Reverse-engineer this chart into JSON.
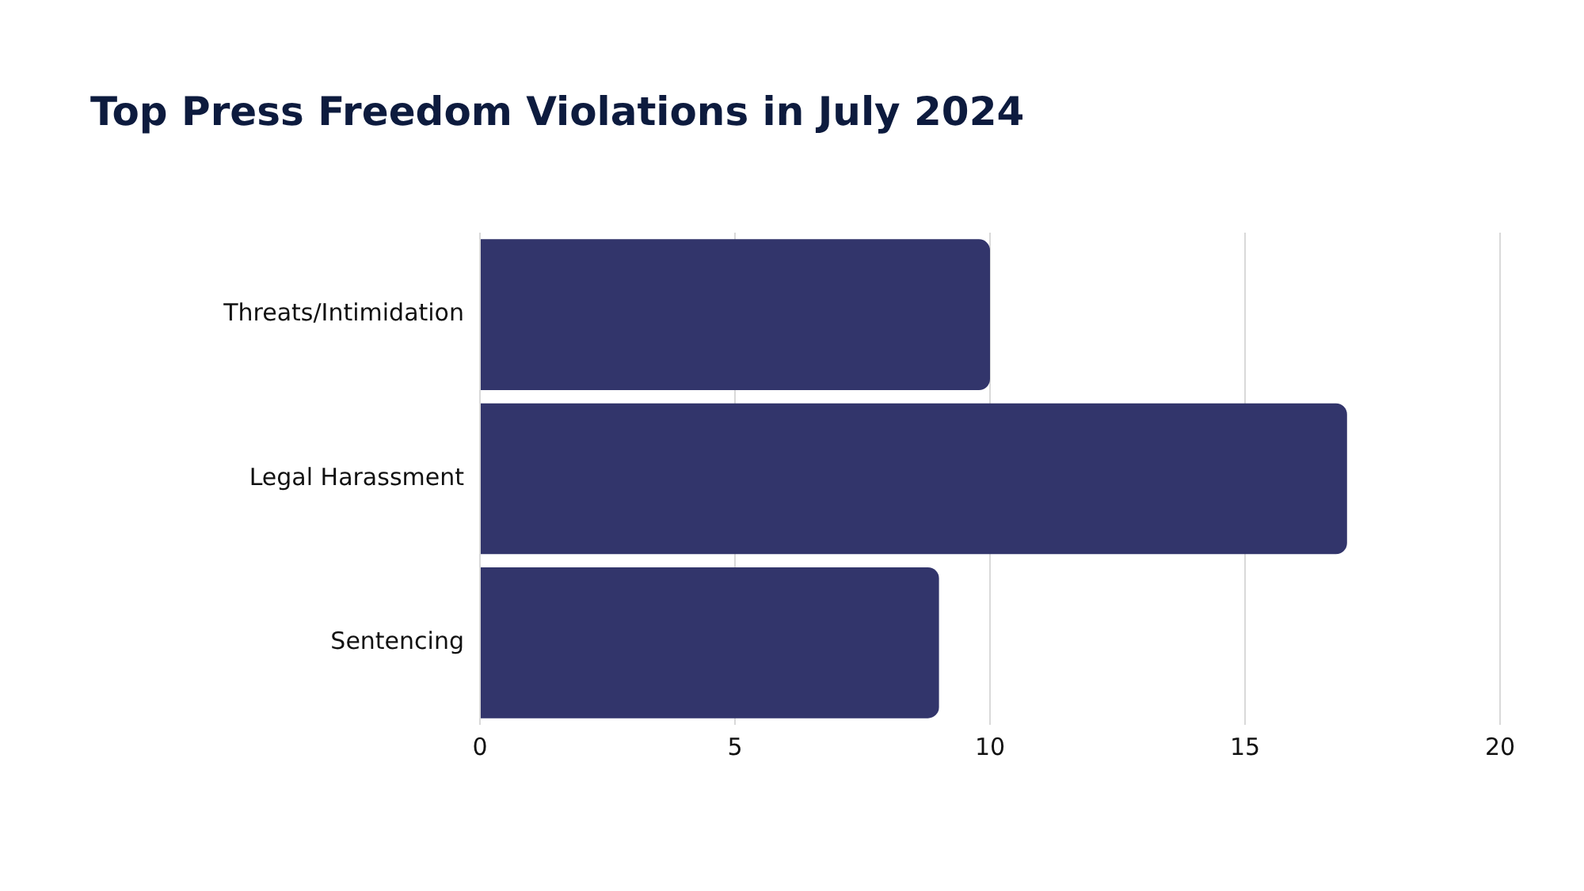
{
  "chart_data": {
    "type": "bar",
    "orientation": "horizontal",
    "title": "Top Press Freedom Violations in July 2024",
    "categories": [
      "Threats/Intimidation",
      "Legal Harassment",
      "Sentencing"
    ],
    "values": [
      10,
      17,
      9
    ],
    "color": "#32356b",
    "xlim": [
      0,
      20
    ],
    "xticks": [
      0,
      5,
      10,
      15,
      20
    ],
    "grid": "x",
    "legend": false
  }
}
